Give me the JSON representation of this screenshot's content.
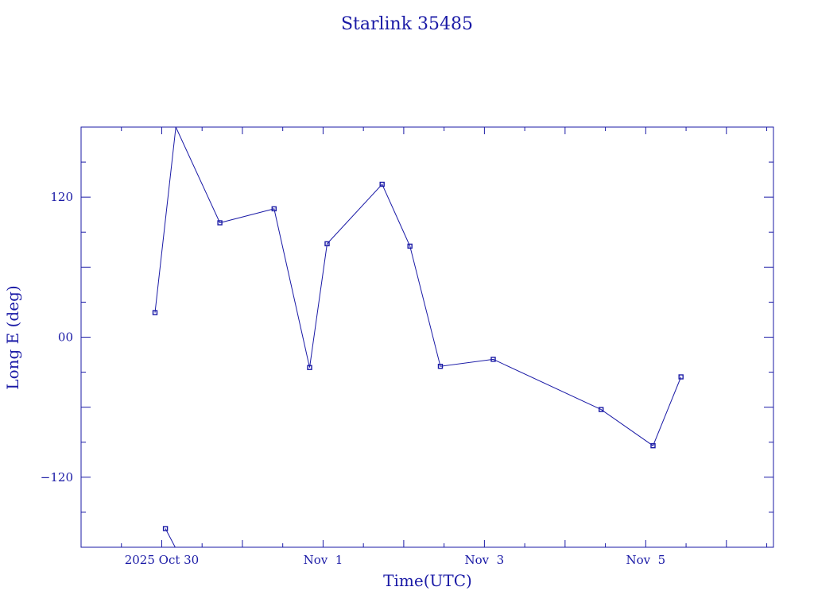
{
  "chart_data": {
    "type": "line",
    "title": "Starlink 35485",
    "xlabel": "Time(UTC)",
    "ylabel": "Long E (deg)",
    "x_unit": "days",
    "xlim": [
      "2025-10-29T00:00Z",
      "2025-11-06T14:00Z"
    ],
    "ylim": [
      -180,
      180
    ],
    "grid": false,
    "x_ticks": [
      {
        "x": "2025-10-30T00:00Z",
        "label": "2025 Oct 30"
      },
      {
        "x": "2025-11-01T00:00Z",
        "label": "Nov  1"
      },
      {
        "x": "2025-11-03T00:00Z",
        "label": "Nov  3"
      },
      {
        "x": "2025-11-05T00:00Z",
        "label": "Nov  5"
      }
    ],
    "y_ticks": [
      {
        "y": 120,
        "label": "120"
      },
      {
        "y": 0,
        "label": "00"
      },
      {
        "y": -120,
        "label": "−120"
      }
    ],
    "series": [
      {
        "points": [
          {
            "x": "2025-10-29T22:00Z",
            "y": 21
          },
          {
            "x": "2025-10-30T04:12Z",
            "y": 180
          },
          {
            "x": "2025-10-30T17:18Z",
            "y": 98
          },
          {
            "x": "2025-10-31T09:25Z",
            "y": 110
          },
          {
            "x": "2025-10-31T20:00Z",
            "y": -26
          },
          {
            "x": "2025-11-01T01:12Z",
            "y": 80
          },
          {
            "x": "2025-11-01T17:34Z",
            "y": 131
          },
          {
            "x": "2025-11-02T01:50Z",
            "y": 78
          },
          {
            "x": "2025-11-02T10:54Z",
            "y": -25
          },
          {
            "x": "2025-11-03T02:38Z",
            "y": -19
          },
          {
            "x": "2025-11-04T10:43Z",
            "y": -62
          },
          {
            "x": "2025-11-05T02:10Z",
            "y": -93
          },
          {
            "x": "2025-11-05T10:29Z",
            "y": -34
          }
        ]
      },
      {
        "points": [
          {
            "x": "2025-10-30T01:06Z",
            "y": -164
          },
          {
            "x": "2025-10-30T04:00Z",
            "y": -180
          }
        ]
      }
    ],
    "markers": [
      {
        "x": "2025-10-29T22:00Z",
        "y": 21
      },
      {
        "x": "2025-10-30T01:06Z",
        "y": -164
      },
      {
        "x": "2025-10-30T17:18Z",
        "y": 98
      },
      {
        "x": "2025-10-31T09:25Z",
        "y": 110
      },
      {
        "x": "2025-10-31T20:00Z",
        "y": -26
      },
      {
        "x": "2025-11-01T01:12Z",
        "y": 80
      },
      {
        "x": "2025-11-01T17:34Z",
        "y": 131
      },
      {
        "x": "2025-11-02T01:50Z",
        "y": 78
      },
      {
        "x": "2025-11-02T10:54Z",
        "y": -25
      },
      {
        "x": "2025-11-03T02:38Z",
        "y": -19
      },
      {
        "x": "2025-11-04T10:43Z",
        "y": -62
      },
      {
        "x": "2025-11-05T02:10Z",
        "y": -93
      },
      {
        "x": "2025-11-05T10:29Z",
        "y": -34
      }
    ],
    "colors": {
      "foreground": "#1a1aa6",
      "background": "#ffffff"
    }
  }
}
